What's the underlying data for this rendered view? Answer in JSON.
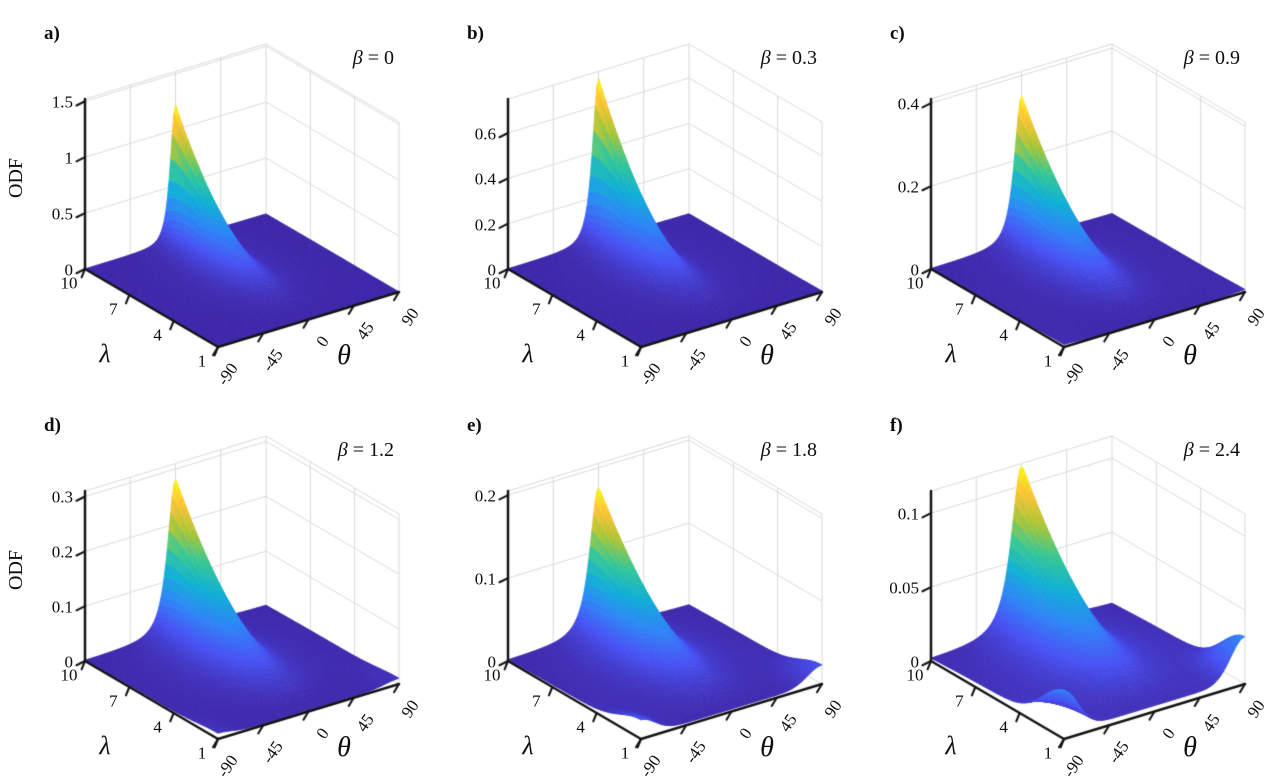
{
  "chart_data": {
    "type": "surface",
    "projection": {
      "kind": "3d-orthographic",
      "azimuth": -37.5,
      "elevation": 30
    },
    "grid": true,
    "layout": {
      "rows": 2,
      "cols": 3
    },
    "colormap": {
      "name": "parula",
      "stops": [
        "#3e26a8",
        "#4852f4",
        "#2e87f7",
        "#12b1d6",
        "#37c897",
        "#abc739",
        "#fec338",
        "#f9fb15"
      ]
    },
    "colors": {
      "grid_line": "#d9d9d9",
      "axis_line": "#141414",
      "text": "#000000",
      "background": "#ffffff",
      "surface_low": "#3e26a8",
      "surface_high": "#f9fb15"
    },
    "shared_axes": {
      "theta": {
        "label": "θ",
        "tick_labels": [
          "-90",
          "-45",
          "0",
          "45",
          "90"
        ],
        "tick_values": [
          -90,
          -45,
          0,
          45,
          90
        ],
        "range": [
          -90,
          90
        ]
      },
      "lambda": {
        "label": "λ",
        "tick_labels": [
          "10",
          "7",
          "4",
          "1"
        ],
        "tick_values": [
          10,
          7,
          4,
          1
        ],
        "range": [
          1,
          10
        ]
      },
      "z_label": "ODF"
    },
    "panels": [
      {
        "letter": "a)",
        "beta_symbol": "β",
        "beta_eq": " = 0",
        "beta_value": 0,
        "show_z_label": true,
        "z_tick_labels": [
          "0",
          "0.5",
          "1",
          "1.5"
        ],
        "z_tick_values": [
          0,
          0.5,
          1,
          1.5
        ],
        "z_axis_max": 1.52,
        "peak": {
          "odf": 1.22,
          "theta_deg": 0,
          "lambda": 10
        },
        "surface_model": {
          "peak": 1.22,
          "theta_width_deg": 8.5,
          "theta_width_spread": 26,
          "lambda_exponent": 2.4,
          "falloff_power": 1.7,
          "side_peak": 0,
          "baseline": 0.0012
        }
      },
      {
        "letter": "b)",
        "beta_symbol": "β",
        "beta_eq": " = 0.3",
        "beta_value": 0.3,
        "show_z_label": false,
        "z_tick_labels": [
          "0",
          "0.2",
          "0.4",
          "0.6"
        ],
        "z_tick_values": [
          0,
          0.2,
          0.4,
          0.6
        ],
        "z_axis_max": 0.75,
        "peak": {
          "odf": 0.72,
          "theta_deg": 0,
          "lambda": 10
        },
        "surface_model": {
          "peak": 0.72,
          "theta_width_deg": 9.5,
          "theta_width_spread": 26,
          "lambda_exponent": 2.3,
          "falloff_power": 1.6,
          "side_peak": 0.0025,
          "baseline": 0.0015
        }
      },
      {
        "letter": "c)",
        "beta_symbol": "β",
        "beta_eq": " = 0.9",
        "beta_value": 0.9,
        "show_z_label": false,
        "z_tick_labels": [
          "0",
          "0.2",
          "0.4"
        ],
        "z_tick_values": [
          0,
          0.2,
          0.4
        ],
        "z_axis_max": 0.41,
        "peak": {
          "odf": 0.35,
          "theta_deg": 0,
          "lambda": 10
        },
        "surface_model": {
          "peak": 0.35,
          "theta_width_deg": 11,
          "theta_width_spread": 26,
          "lambda_exponent": 2.1,
          "falloff_power": 1.55,
          "side_peak": 0.004,
          "baseline": 0.002
        }
      },
      {
        "letter": "d)",
        "beta_symbol": "β",
        "beta_eq": " = 1.2",
        "beta_value": 1.2,
        "show_z_label": true,
        "z_tick_labels": [
          "0",
          "0.1",
          "0.2",
          "0.3"
        ],
        "z_tick_values": [
          0,
          0.1,
          0.2,
          0.3
        ],
        "z_axis_max": 0.31,
        "peak": {
          "odf": 0.28,
          "theta_deg": 0,
          "lambda": 10
        },
        "surface_model": {
          "peak": 0.28,
          "theta_width_deg": 12,
          "theta_width_spread": 27,
          "lambda_exponent": 2.0,
          "falloff_power": 1.5,
          "side_peak": 0.008,
          "baseline": 0.0025
        }
      },
      {
        "letter": "e)",
        "beta_symbol": "β",
        "beta_eq": " = 1.8",
        "beta_value": 1.8,
        "show_z_label": false,
        "z_tick_labels": [
          "0",
          "0.1",
          "0.2"
        ],
        "z_tick_values": [
          0,
          0.1,
          0.2
        ],
        "z_axis_max": 0.205,
        "peak": {
          "odf": 0.175,
          "theta_deg": 0,
          "lambda": 10
        },
        "surface_model": {
          "peak": 0.175,
          "theta_width_deg": 13,
          "theta_width_spread": 28,
          "lambda_exponent": 1.9,
          "falloff_power": 1.45,
          "side_peak": 0.02,
          "baseline": 0.003
        }
      },
      {
        "letter": "f)",
        "beta_symbol": "β",
        "beta_eq": " = 2.4",
        "beta_value": 2.4,
        "show_z_label": false,
        "z_tick_labels": [
          "0",
          "0.05",
          "0.1"
        ],
        "z_tick_values": [
          0,
          0.05,
          0.1
        ],
        "z_axis_max": 0.115,
        "peak": {
          "odf": 0.112,
          "theta_deg": 0,
          "lambda": 10
        },
        "surface_model": {
          "peak": 0.112,
          "theta_width_deg": 15,
          "theta_width_spread": 30,
          "lambda_exponent": 1.8,
          "falloff_power": 1.4,
          "side_peak": 0.028,
          "baseline": 0.004
        }
      }
    ]
  }
}
